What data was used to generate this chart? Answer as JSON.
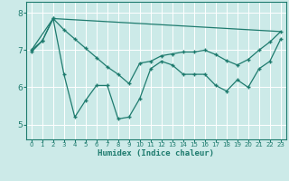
{
  "xlabel": "Humidex (Indice chaleur)",
  "xlim": [
    -0.5,
    23.5
  ],
  "ylim": [
    4.6,
    8.3
  ],
  "yticks": [
    5,
    6,
    7,
    8
  ],
  "xticks": [
    0,
    1,
    2,
    3,
    4,
    5,
    6,
    7,
    8,
    9,
    10,
    11,
    12,
    13,
    14,
    15,
    16,
    17,
    18,
    19,
    20,
    21,
    22,
    23
  ],
  "bg_color": "#cceae8",
  "line_color": "#1e7b6e",
  "grid_color": "#ffffff",
  "line1_x": [
    0,
    1,
    2,
    3,
    4,
    5,
    6,
    7,
    8,
    9,
    10,
    11,
    12,
    13,
    14,
    15,
    16,
    17,
    18,
    19,
    20,
    21,
    22,
    23
  ],
  "line1_y": [
    6.95,
    7.25,
    7.85,
    6.35,
    5.2,
    5.65,
    6.05,
    6.05,
    5.15,
    5.2,
    5.7,
    6.5,
    6.7,
    6.6,
    6.35,
    6.35,
    6.35,
    6.05,
    5.9,
    6.2,
    6.0,
    6.5,
    6.7,
    7.3
  ],
  "line2_x": [
    0,
    2,
    23
  ],
  "line2_y": [
    7.0,
    7.85,
    7.5
  ],
  "line3_x": [
    0,
    1,
    2,
    3,
    4,
    5,
    6,
    7,
    8,
    9,
    10,
    11,
    12,
    13,
    14,
    15,
    16,
    17,
    18,
    19,
    20,
    21,
    22,
    23
  ],
  "line3_y": [
    7.0,
    7.25,
    7.85,
    7.55,
    7.3,
    7.05,
    6.8,
    6.55,
    6.35,
    6.1,
    6.65,
    6.7,
    6.85,
    6.9,
    6.95,
    6.95,
    7.0,
    6.88,
    6.72,
    6.6,
    6.75,
    7.0,
    7.22,
    7.5
  ]
}
